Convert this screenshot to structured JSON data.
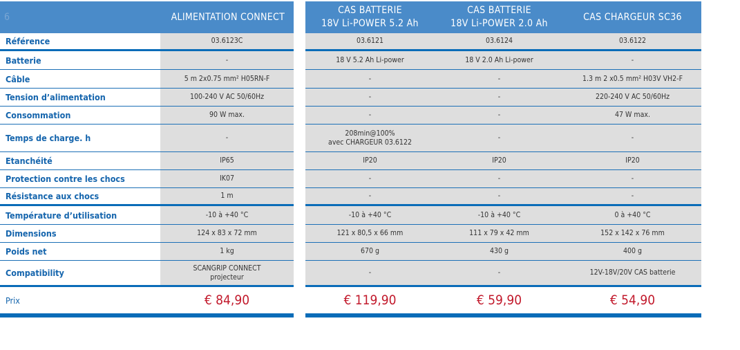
{
  "header": {
    "corner": "6",
    "columns": [
      "ALIMENTATION CONNECT",
      "CAS BATTERIE\n18V Li-POWER 5.2 Ah",
      "CAS BATTERIE\n18V Li-POWER 2.0 Ah",
      "CAS CHARGEUR SC36"
    ]
  },
  "rows": [
    {
      "label": "Référence",
      "values": [
        "03.6123C",
        "03.6121",
        "03.6124",
        "03.6122"
      ]
    },
    {
      "label": "Batterie",
      "values": [
        "-",
        "18 V 5.2 Ah Li-power",
        "18 V 2.0 Ah Li-power",
        "-"
      ]
    },
    {
      "label": "Câble",
      "values": [
        "5 m 2x0.75 mm² H05RN-F",
        "-",
        "-",
        "1.3 m 2  x0.5 mm² H03V VH2-F"
      ]
    },
    {
      "label": "Tension d’alimentation",
      "values": [
        "100-240 V AC 50/60Hz",
        "-",
        "-",
        "220-240 V AC  50/60Hz"
      ]
    },
    {
      "label": "Consommation",
      "values": [
        "90 W max.",
        "-",
        "-",
        "47 W max."
      ]
    },
    {
      "label": "Temps de charge. h",
      "values": [
        "-",
        "208min@100%\navec CHARGEUR 03.6122",
        "-",
        "-"
      ]
    },
    {
      "label": "Etanchéité",
      "values": [
        "IP65",
        "IP20",
        "IP20",
        "IP20"
      ]
    },
    {
      "label": "Protection contre les chocs",
      "values": [
        "IK07",
        "-",
        "-",
        "-"
      ]
    },
    {
      "label": "Résistance aux chocs",
      "values": [
        "1 m",
        "-",
        "-",
        "-"
      ]
    },
    {
      "label": "Température d’utilisation",
      "values": [
        "-10 à +40 °C",
        "-10 à +40 °C",
        "-10 à +40 °C",
        "0 à +40 °C"
      ]
    },
    {
      "label": "Dimensions",
      "values": [
        "124 x 83 x 72 mm",
        "121 x 80,5 x 66 mm",
        "111 x 79 x 42 mm",
        "152 x 142 x 76 mm"
      ]
    },
    {
      "label": "Poids net",
      "values": [
        "1 kg",
        "670 g",
        "430 g",
        "400 g"
      ]
    },
    {
      "label": "Compatibility",
      "values": [
        "SCANGRIP CONNECT\nprojecteur",
        "-",
        "-",
        "12V-18V/20V CAS batterie"
      ]
    },
    {
      "label": "Prix",
      "values": [
        "€ 84,90",
        "€ 119,90",
        "€ 59,90",
        "€ 54,90"
      ]
    }
  ]
}
